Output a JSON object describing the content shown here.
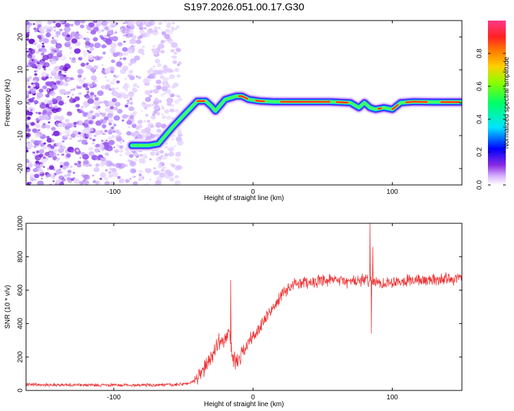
{
  "title": "S197.2026.051.00.17.G30",
  "chart_data": [
    {
      "type": "heatmap",
      "name": "spectrogram",
      "xlabel": "Height of straight line (km)",
      "ylabel": "Frequency (Hz)",
      "xlim": [
        -163,
        150
      ],
      "ylim": [
        -25,
        25
      ],
      "xticks": [
        -100,
        0,
        100
      ],
      "yticks": [
        -20,
        -10,
        0,
        10,
        20
      ],
      "colorbar": {
        "label": "Normalized spectral amplitude",
        "ticks": [
          0.0,
          0.2,
          0.4,
          0.6,
          0.8
        ],
        "range": [
          0,
          1
        ]
      },
      "noise_region_x": [
        -163,
        -52
      ],
      "ridge": {
        "x": [
          -87,
          -75,
          -68,
          -58,
          -48,
          -40,
          -34,
          -30,
          -27,
          -24,
          -20,
          -16,
          -12,
          -8,
          -3,
          5,
          15,
          30,
          55,
          70,
          76,
          80,
          84,
          88,
          94,
          100,
          106,
          115,
          130,
          150
        ],
        "freq": [
          -13,
          -13,
          -12.5,
          -7.5,
          -3,
          0.5,
          0.5,
          -1,
          -2.5,
          -1,
          1,
          1.5,
          2,
          2,
          1,
          0.5,
          0.3,
          0.3,
          0.3,
          0,
          -1.5,
          0,
          -1.5,
          -2,
          -1.5,
          -2,
          0,
          0.3,
          0.2,
          0.2
        ]
      }
    },
    {
      "type": "line",
      "name": "snr",
      "xlabel": "Height of straight line (km)",
      "ylabel": "SNR (10 * v/v)",
      "xlim": [
        -163,
        150
      ],
      "ylim": [
        0,
        1000
      ],
      "xticks": [
        -100,
        0,
        100
      ],
      "yticks": [
        0,
        200,
        400,
        600,
        800,
        1000
      ],
      "color": "#ee3333",
      "series_trend": {
        "x": [
          -163,
          -110,
          -55,
          -45,
          -40,
          -35,
          -30,
          -25,
          -20,
          -17,
          -15,
          -12,
          -8,
          -5,
          0,
          5,
          10,
          15,
          20,
          25,
          30,
          40,
          50,
          60,
          70,
          80,
          84,
          90,
          100,
          110,
          120,
          130,
          140,
          150
        ],
        "y": [
          35,
          32,
          33,
          45,
          70,
          130,
          200,
          290,
          300,
          360,
          200,
          170,
          220,
          270,
          320,
          380,
          440,
          500,
          560,
          610,
          640,
          650,
          650,
          660,
          650,
          660,
          660,
          640,
          650,
          660,
          660,
          660,
          670,
          670
        ]
      },
      "spikes": [
        {
          "x": -16,
          "y": 660
        },
        {
          "x": -14,
          "y": 140
        },
        {
          "x": 84,
          "y": 1000
        },
        {
          "x": 85,
          "y": 340
        },
        {
          "x": 86,
          "y": 860
        }
      ]
    }
  ]
}
